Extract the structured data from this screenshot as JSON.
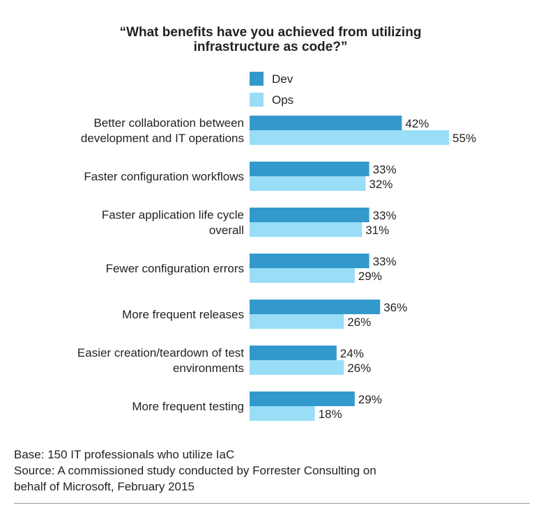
{
  "title_lines": [
    "“What benefits have you achieved from utilizing",
    "infrastructure as code?”"
  ],
  "footer_lines": [
    "Base: 150 IT professionals who utilize IaC",
    "Source: A commissioned study conducted by Forrester Consulting on",
    "behalf of Microsoft, February 2015"
  ],
  "colors": {
    "dev": "#3399cc",
    "ops": "#99ddf7"
  },
  "chart_data": {
    "type": "bar",
    "orientation": "horizontal",
    "title": "“What benefits have you achieved from utilizing infrastructure as code?”",
    "value_suffix": "%",
    "legend_position": "top",
    "grid": false,
    "xlim": [
      0,
      55
    ],
    "categories": [
      [
        "Better collaboration between",
        "development and IT operations"
      ],
      [
        "Faster configuration workflows"
      ],
      [
        "Faster application life cycle",
        "overall"
      ],
      [
        "Fewer configuration errors"
      ],
      [
        "More frequent releases"
      ],
      [
        "Easier creation/teardown of test",
        "environments"
      ],
      [
        "More frequent testing"
      ]
    ],
    "series": [
      {
        "name": "Dev",
        "values": [
          42,
          33,
          33,
          33,
          36,
          24,
          29
        ]
      },
      {
        "name": "Ops",
        "values": [
          55,
          32,
          31,
          29,
          26,
          26,
          18
        ]
      }
    ]
  }
}
